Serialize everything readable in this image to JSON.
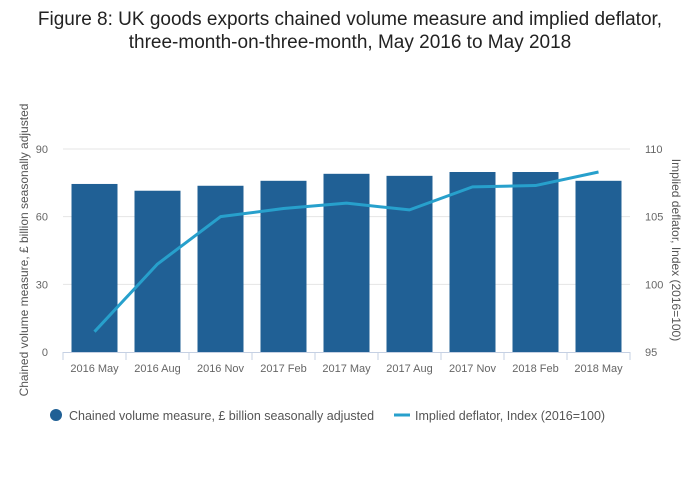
{
  "chart_data": {
    "type": "bar+line",
    "title_line1": "Figure 8: UK goods exports chained volume measure and implied deflator,",
    "title_line2": "three-month-on-three-month, May 2016 to May 2018",
    "categories": [
      "2016 May",
      "2016 Aug",
      "2016 Nov",
      "2017 Feb",
      "2017 May",
      "2017 Aug",
      "2017 Nov",
      "2018 Feb",
      "2018 May"
    ],
    "series": [
      {
        "name": "Chained volume measure, £ billion seasonally adjusted",
        "type": "bar",
        "axis": "left",
        "color": "#206095",
        "values": [
          74.5,
          71.5,
          73.7,
          75.9,
          79.0,
          78.1,
          79.8,
          79.8,
          75.9
        ]
      },
      {
        "name": "Implied deflator, Index (2016=100)",
        "type": "line",
        "axis": "right",
        "color": "#27a0cc",
        "values": [
          96.5,
          101.5,
          105.0,
          105.6,
          106.0,
          105.5,
          107.2,
          107.3,
          108.3
        ]
      }
    ],
    "ylabel": "Chained volume measure, £ billion seasonally adjusted",
    "y2label": "Implied deflator, Index (2016=100)",
    "ylim": [
      0,
      90
    ],
    "yticks": [
      0,
      30,
      60,
      90
    ],
    "y2lim": [
      95,
      110
    ],
    "y2ticks": [
      95,
      100,
      105,
      110
    ],
    "grid": true,
    "legend_position": "bottom-left"
  }
}
